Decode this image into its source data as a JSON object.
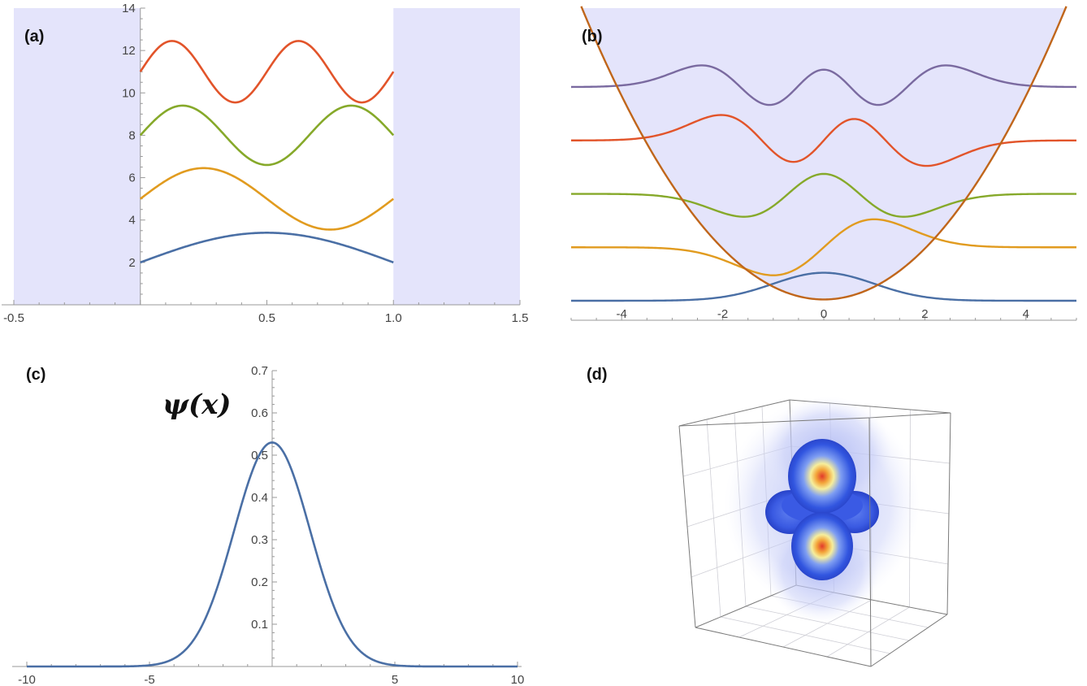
{
  "panel_labels": {
    "a": "(a)",
    "b": "(b)",
    "c": "(c)",
    "d": "(d)"
  },
  "colors": {
    "series": [
      "#4a6fa5",
      "#e19b1f",
      "#86a92a",
      "#e2542a",
      "#7a6aa0"
    ],
    "potential": "#c0661b",
    "shade": "#e4e4fb",
    "axis": "#999999"
  },
  "chart_data": [
    {
      "id": "a",
      "type": "line",
      "description_label": "(a)",
      "xlim": [
        -0.5,
        1.5
      ],
      "ylim": [
        0,
        14
      ],
      "x_ticks": [
        "-0.5",
        "0.5",
        "1.0",
        "1.5"
      ],
      "x_tick_values": [
        -0.5,
        0.5,
        1.0,
        1.5
      ],
      "y_ticks": [
        "2",
        "4",
        "6",
        "8",
        "10",
        "12",
        "14"
      ],
      "y_tick_values": [
        2,
        4,
        6,
        8,
        10,
        12,
        14
      ],
      "shaded_regions": [
        [
          -0.5,
          0.0
        ],
        [
          1.0,
          1.5
        ]
      ],
      "series": [
        {
          "n": 1,
          "offset": 2,
          "amplitude": 1.4,
          "x_range": [
            0,
            1
          ]
        },
        {
          "n": 2,
          "offset": 5,
          "amplitude": 1.45,
          "x_range": [
            0,
            1
          ]
        },
        {
          "n": 3,
          "offset": 8,
          "amplitude": 1.4,
          "x_range": [
            0,
            1
          ]
        },
        {
          "n": 4,
          "offset": 11,
          "amplitude": 1.45,
          "x_range": [
            0,
            1
          ]
        }
      ]
    },
    {
      "id": "b",
      "type": "line",
      "description_label": "(b)",
      "xlim": [
        -5,
        5
      ],
      "ylim": [
        0,
        11.5
      ],
      "x_ticks": [
        "-4",
        "-2",
        "0",
        "2",
        "4"
      ],
      "x_tick_values": [
        -4,
        -2,
        0,
        2,
        4
      ],
      "potential": {
        "form": "x^2/2"
      },
      "series": [
        {
          "n": 0,
          "offset": 0,
          "amplitude": 1.1
        },
        {
          "n": 1,
          "offset": 2.1,
          "amplitude": 1.1
        },
        {
          "n": 2,
          "offset": 4.2,
          "amplitude": 0.9
        },
        {
          "n": 3,
          "offset": 6.3,
          "amplitude": 1.0
        },
        {
          "n": 4,
          "offset": 8.4,
          "amplitude": 0.85
        }
      ]
    },
    {
      "id": "c",
      "type": "line",
      "description_label": "(c)",
      "ylabel": "ψ(x)",
      "xlim": [
        -10,
        10
      ],
      "ylim": [
        0,
        0.7
      ],
      "x_ticks": [
        "-10",
        "-5",
        "5",
        "10"
      ],
      "x_tick_values": [
        -10,
        -5,
        5,
        10
      ],
      "y_ticks": [
        "0.1",
        "0.2",
        "0.3",
        "0.4",
        "0.5",
        "0.6",
        "0.7"
      ],
      "y_tick_values": [
        0.1,
        0.2,
        0.3,
        0.4,
        0.5,
        0.6,
        0.7
      ],
      "series": [
        {
          "form": "gaussian",
          "peak": 0.53,
          "center": 0,
          "sigma": 1.55
        }
      ]
    },
    {
      "id": "d",
      "type": "3d-density",
      "description_label": "(d)",
      "shape": "d-orbital-like lobes inside a box"
    }
  ]
}
